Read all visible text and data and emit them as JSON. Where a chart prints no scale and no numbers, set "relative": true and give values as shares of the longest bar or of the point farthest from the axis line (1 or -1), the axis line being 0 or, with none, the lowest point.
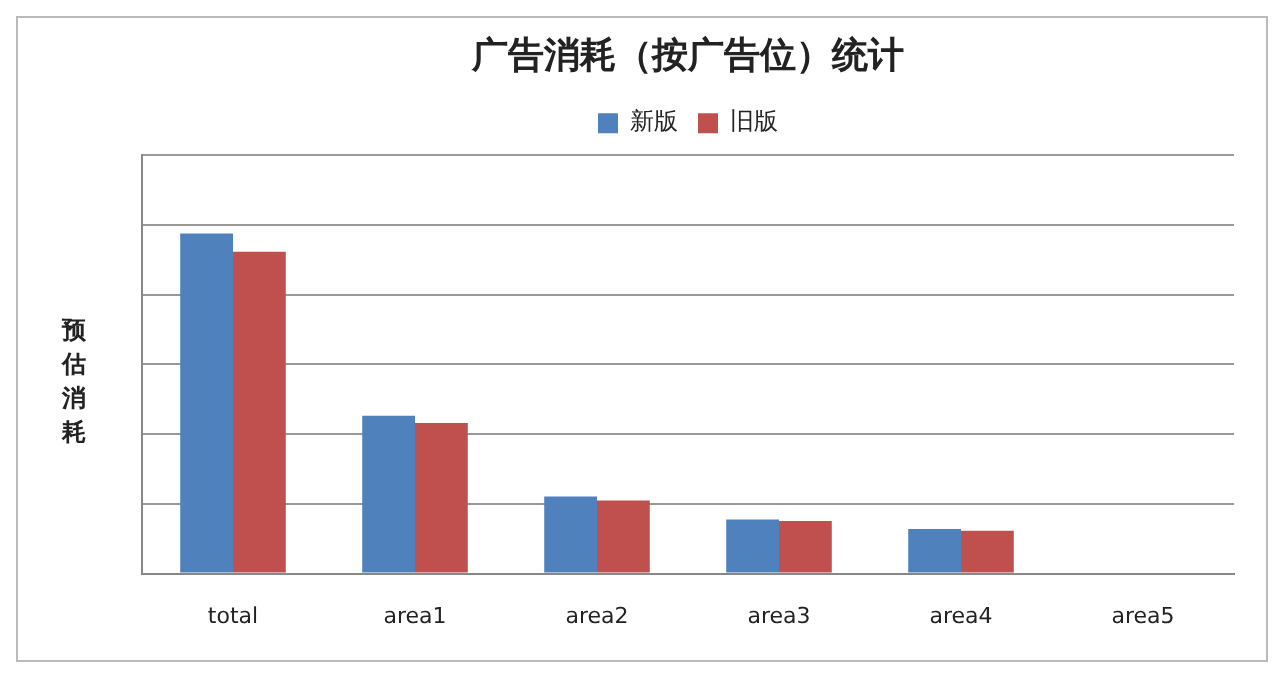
{
  "chart_data": {
    "type": "bar",
    "title": "广告消耗（按广告位）统计",
    "ylabel": "预估消耗",
    "relative": true,
    "grid": "y",
    "legend": "top",
    "categories": [
      "total",
      "area1",
      "area2",
      "area3",
      "area4",
      "area5"
    ],
    "series": [
      {
        "name": "新版",
        "color": "#4f81bd",
        "values": [
          1,
          0.464,
          0.227,
          0.159,
          0.131,
          0
        ]
      },
      {
        "name": "旧版",
        "color": "#c0504d",
        "values": [
          0.946,
          0.443,
          0.215,
          0.155,
          0.126,
          0
        ]
      }
    ]
  }
}
